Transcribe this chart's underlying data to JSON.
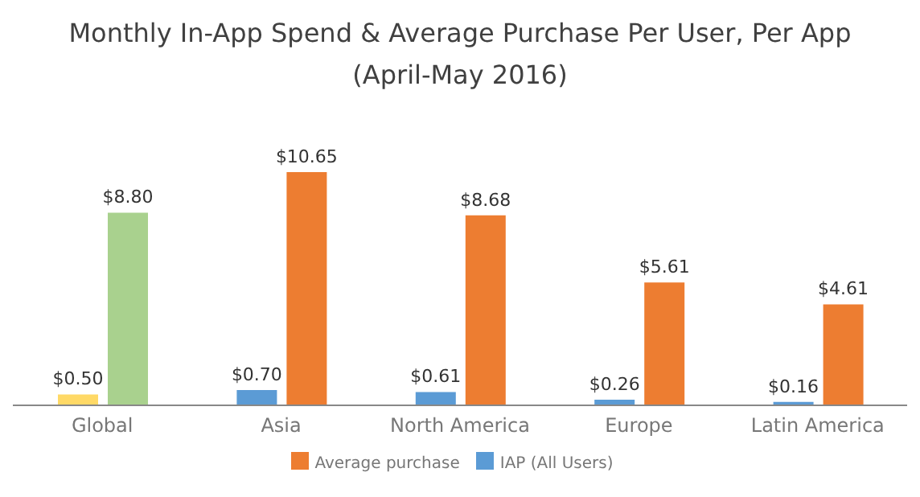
{
  "chart_data": {
    "type": "bar",
    "title": "Monthly In-App Spend & Average Purchase Per User, Per App\n(April-May 2016)",
    "categories": [
      "Global",
      "Asia",
      "North America",
      "Europe",
      "Latin America"
    ],
    "series": [
      {
        "name": "IAP (All Users)",
        "color": "#5b9bd5",
        "colors": [
          "#ffd966",
          "#5b9bd5",
          "#5b9bd5",
          "#5b9bd5",
          "#5b9bd5"
        ],
        "values": [
          0.5,
          0.7,
          0.61,
          0.26,
          0.16
        ],
        "value_labels": [
          "$0.50",
          "$0.70",
          "$0.61",
          "$0.26",
          "$0.16"
        ]
      },
      {
        "name": "Average purchase",
        "color": "#ed7d31",
        "colors": [
          "#a9d18e",
          "#ed7d31",
          "#ed7d31",
          "#ed7d31",
          "#ed7d31"
        ],
        "values": [
          8.8,
          10.65,
          8.68,
          5.61,
          4.61
        ],
        "value_labels": [
          "$8.80",
          "$10.65",
          "$8.68",
          "$5.61",
          "$4.61"
        ]
      }
    ],
    "legend": "bottom",
    "tick_labels": "x",
    "grid": false
  }
}
